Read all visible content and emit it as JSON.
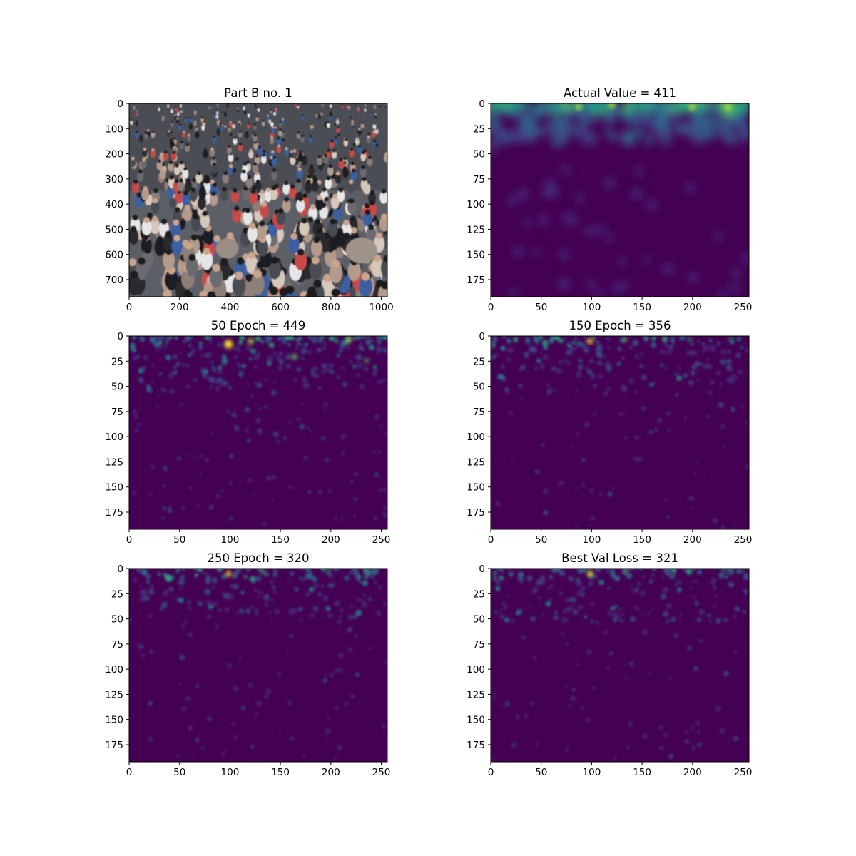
{
  "figure": {
    "panels": [
      {
        "id": "photo",
        "title": "Part B no. 1"
      },
      {
        "id": "actual",
        "title": "Actual Value = 411"
      },
      {
        "id": "ep50",
        "title": "50 Epoch = 449"
      },
      {
        "id": "ep150",
        "title": "150 Epoch = 356"
      },
      {
        "id": "ep250",
        "title": "250 Epoch = 320"
      },
      {
        "id": "best",
        "title": "Best Val Loss = 321"
      }
    ]
  },
  "colors": {
    "background": "#440154",
    "viridis": [
      "#440154",
      "#472d7b",
      "#3b528b",
      "#2c728e",
      "#21918c",
      "#28ae80",
      "#5ec962",
      "#addc30",
      "#fde725"
    ],
    "crowd": [
      "#2b2a2e",
      "#4a4b52",
      "#6b6a70",
      "#8e7f78",
      "#b49a8a",
      "#d7c8bc",
      "#c94a4a",
      "#3b5fa0",
      "#e6e6e6",
      "#1d1d22"
    ]
  },
  "chart_data": [
    {
      "type": "heatmap",
      "panel": "photo",
      "title": "Part B no. 1",
      "image": "photo",
      "xlim": [
        0,
        1024
      ],
      "ylim": [
        768,
        0
      ],
      "xticks": [
        0,
        200,
        400,
        600,
        800,
        1000
      ],
      "yticks": [
        0,
        100,
        200,
        300,
        400,
        500,
        600,
        700
      ]
    },
    {
      "type": "heatmap",
      "panel": "actual",
      "title": "Actual Value = 411",
      "count": 411,
      "xlim": [
        0,
        256
      ],
      "ylim": [
        192,
        0
      ],
      "xticks": [
        0,
        50,
        100,
        150,
        200,
        250
      ],
      "yticks": [
        0,
        25,
        50,
        75,
        100,
        125,
        150,
        175
      ]
    },
    {
      "type": "heatmap",
      "panel": "ep50",
      "title": "50 Epoch = 449",
      "epoch": 50,
      "count": 449,
      "xlim": [
        0,
        256
      ],
      "ylim": [
        192,
        0
      ],
      "xticks": [
        0,
        50,
        100,
        150,
        200,
        250
      ],
      "yticks": [
        0,
        25,
        50,
        75,
        100,
        125,
        150,
        175
      ]
    },
    {
      "type": "heatmap",
      "panel": "ep150",
      "title": "150 Epoch = 356",
      "epoch": 150,
      "count": 356,
      "xlim": [
        0,
        256
      ],
      "ylim": [
        192,
        0
      ],
      "xticks": [
        0,
        50,
        100,
        150,
        200,
        250
      ],
      "yticks": [
        0,
        25,
        50,
        75,
        100,
        125,
        150,
        175
      ]
    },
    {
      "type": "heatmap",
      "panel": "ep250",
      "title": "250 Epoch = 320",
      "epoch": 250,
      "count": 320,
      "xlim": [
        0,
        256
      ],
      "ylim": [
        192,
        0
      ],
      "xticks": [
        0,
        50,
        100,
        150,
        200,
        250
      ],
      "yticks": [
        0,
        25,
        50,
        75,
        100,
        125,
        150,
        175
      ]
    },
    {
      "type": "heatmap",
      "panel": "best",
      "title": "Best Val Loss = 321",
      "count": 321,
      "xlim": [
        0,
        256
      ],
      "ylim": [
        192,
        0
      ],
      "xticks": [
        0,
        50,
        100,
        150,
        200,
        250
      ],
      "yticks": [
        0,
        25,
        50,
        75,
        100,
        125,
        150,
        175
      ]
    }
  ]
}
